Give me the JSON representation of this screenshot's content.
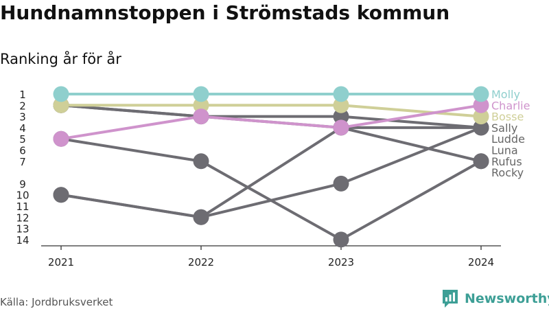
{
  "title": "Hundnamnstoppen i Strömstads kommun",
  "subtitle": "Ranking år för år",
  "source": "Källa: Jordbruksverket",
  "brand": {
    "name": "Newsworthy",
    "logo_icon": "newsworthy-logo-icon"
  },
  "colors": {
    "gray": "#6d6c72",
    "Molly": "#8fcfcd",
    "Charlie": "#cf93cc",
    "Bosse": "#cfcf98",
    "label_gray": "#666666",
    "axis": "#333333"
  },
  "chart_data": {
    "type": "line",
    "x": [
      "2021",
      "2022",
      "2023",
      "2024"
    ],
    "y_ticks": [
      1,
      2,
      3,
      4,
      5,
      6,
      7,
      9,
      10,
      11,
      12,
      13,
      14
    ],
    "y_reversed": true,
    "series": [
      {
        "name": "Rocky",
        "values": [
          10,
          12,
          4,
          7
        ]
      },
      {
        "name": "Rufus",
        "values": [
          5,
          7,
          14,
          7
        ]
      },
      {
        "name": "Luna",
        "values": [
          10,
          12,
          9,
          4
        ]
      },
      {
        "name": "Ludde",
        "values": [
          2,
          3,
          3,
          4
        ]
      },
      {
        "name": "Sally",
        "values": [
          2,
          3,
          4,
          4
        ]
      },
      {
        "name": "Bosse",
        "values": [
          2,
          2,
          2,
          3
        ]
      },
      {
        "name": "Charlie",
        "values": [
          5,
          3,
          4,
          2
        ]
      },
      {
        "name": "Molly",
        "values": [
          1,
          1,
          1,
          1
        ]
      }
    ],
    "legend_order": [
      "Molly",
      "Charlie",
      "Bosse",
      "Sally",
      "Ludde",
      "Luna",
      "Rufus",
      "Rocky"
    ],
    "legend_placement": "right"
  }
}
